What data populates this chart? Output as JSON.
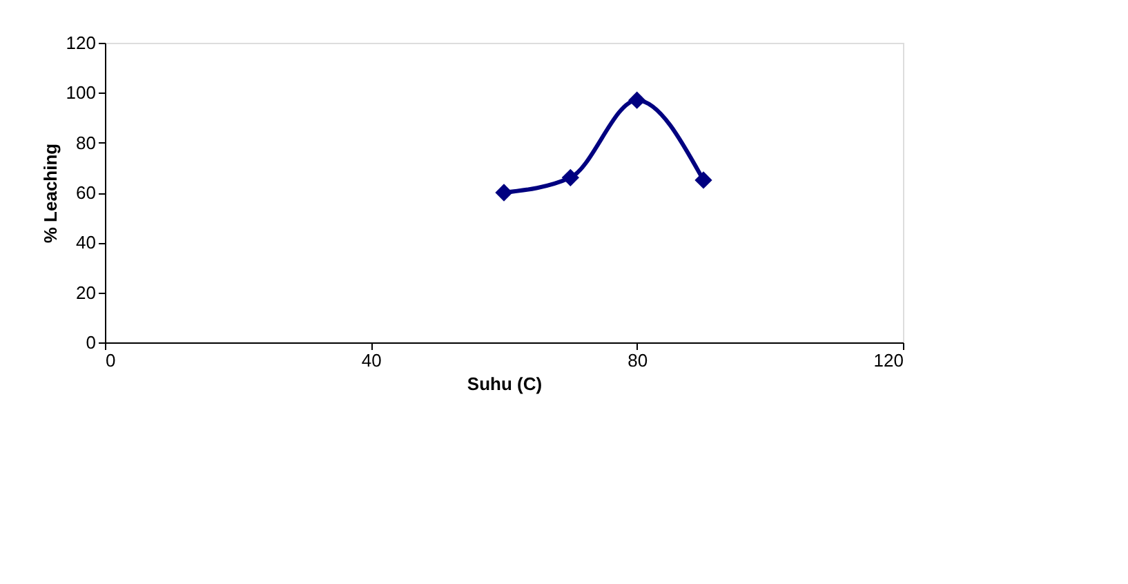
{
  "chart_data": {
    "type": "line",
    "xlabel": "Suhu (C)",
    "ylabel": "% Leaching",
    "x": [
      60,
      70,
      80,
      90
    ],
    "series": [
      {
        "color": "#000080",
        "values": [
          60,
          66,
          97,
          65
        ]
      }
    ],
    "xlim": [
      0,
      120
    ],
    "xticks": [
      0,
      40,
      80,
      120
    ],
    "ylim": [
      0,
      120
    ],
    "yticks": [
      0,
      20,
      40,
      60,
      80,
      100,
      120
    ],
    "marker": "diamond",
    "line_style": "solid",
    "grid": false,
    "legend": false
  }
}
